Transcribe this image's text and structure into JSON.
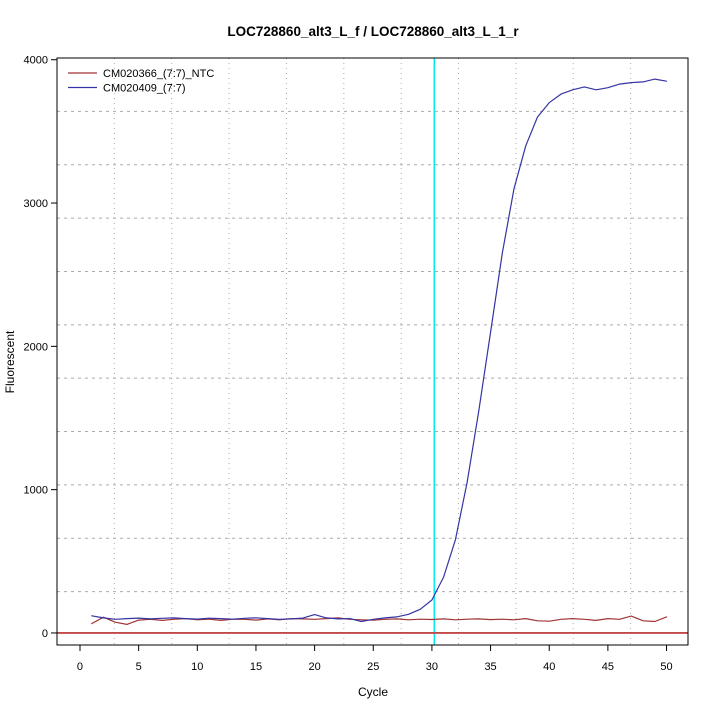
{
  "figure": {
    "background": "#ffffff"
  },
  "chart_data": {
    "type": "line",
    "title": "LOC728860_alt3_L_f / LOC728860_alt3_L_1_r",
    "xlabel": "Cycle",
    "ylabel": "Fluorescent",
    "x_ticks": [
      0,
      5,
      10,
      15,
      20,
      25,
      30,
      35,
      40,
      45,
      50
    ],
    "y_ticks": [
      0,
      1000,
      2000,
      3000,
      4000
    ],
    "xlim": [
      -1.96,
      51.83
    ],
    "ylim": [
      -84,
      4012
    ],
    "grid": {
      "nx": 11,
      "ny": 11,
      "color": "#ababab",
      "vertical_style": "dotted",
      "horizontal_style": "dashed"
    },
    "threshold_line": {
      "y": 0,
      "color": "#c2484a"
    },
    "ct_marker_line": {
      "x": 30.2,
      "color": "#00eeee"
    },
    "legend_position": "top-left",
    "x": [
      1,
      2,
      3,
      4,
      5,
      6,
      7,
      8,
      9,
      10,
      11,
      12,
      13,
      14,
      15,
      16,
      17,
      18,
      19,
      20,
      21,
      22,
      23,
      24,
      25,
      26,
      27,
      28,
      29,
      30,
      31,
      32,
      33,
      34,
      35,
      36,
      37,
      38,
      39,
      40,
      41,
      42,
      43,
      44,
      45,
      46,
      47,
      48,
      49,
      50
    ],
    "series": [
      {
        "name": "CM020366_(7:7)_NTC",
        "color": "#a03434",
        "values": [
          65,
          110,
          75,
          60,
          90,
          95,
          88,
          95,
          100,
          92,
          97,
          88,
          95,
          95,
          90,
          98,
          92,
          100,
          98,
          95,
          100,
          105,
          95,
          92,
          90,
          95,
          98,
          92,
          96,
          94,
          98,
          92,
          96,
          98,
          93,
          96,
          92,
          100,
          85,
          82,
          95,
          100,
          95,
          88,
          100,
          95,
          118,
          85,
          80,
          112
        ]
      },
      {
        "name": "CM020409_(7:7)",
        "color": "#3434a4",
        "values": [
          120,
          105,
          95,
          100,
          104,
          98,
          102,
          105,
          100,
          97,
          103,
          100,
          96,
          102,
          106,
          100,
          95,
          98,
          104,
          128,
          105,
          98,
          100,
          80,
          95,
          105,
          112,
          130,
          165,
          230,
          390,
          650,
          1050,
          1550,
          2100,
          2650,
          3100,
          3400,
          3600,
          3700,
          3760,
          3790,
          3810,
          3790,
          3805,
          3830,
          3840,
          3845,
          3865,
          3850
        ]
      }
    ]
  }
}
